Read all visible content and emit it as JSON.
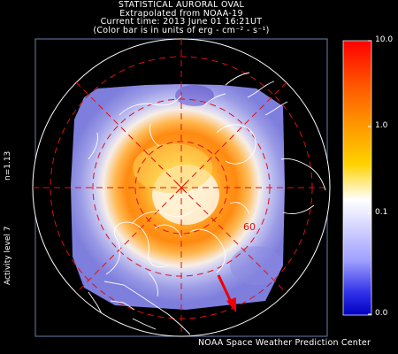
{
  "header": {
    "line1": "STATISTICAL AURORAL OVAL",
    "line2": "Extrapolated from NOAA-19",
    "line3": "Current time: 2013 June 01 16:21UT",
    "line4": "(Color bar is in units of erg - cm⁻² - s⁻¹)"
  },
  "side_labels": {
    "n_value": "n=1.13",
    "activity": "Activity level 7"
  },
  "map": {
    "latitude_label": "60",
    "colors": {
      "grid": "#dd1111",
      "coast": "#ffffff",
      "arrow": "#ee0000"
    }
  },
  "colorbar": {
    "ticks": [
      "10.0",
      "1.0",
      "0.1",
      "0.0"
    ],
    "colors": [
      "#ff0000",
      "#ff8c00",
      "#ffd800",
      "#ffffff",
      "#9090ff",
      "#0000cc"
    ]
  },
  "footer": {
    "credit": "NOAA Space Weather Prediction Center"
  }
}
